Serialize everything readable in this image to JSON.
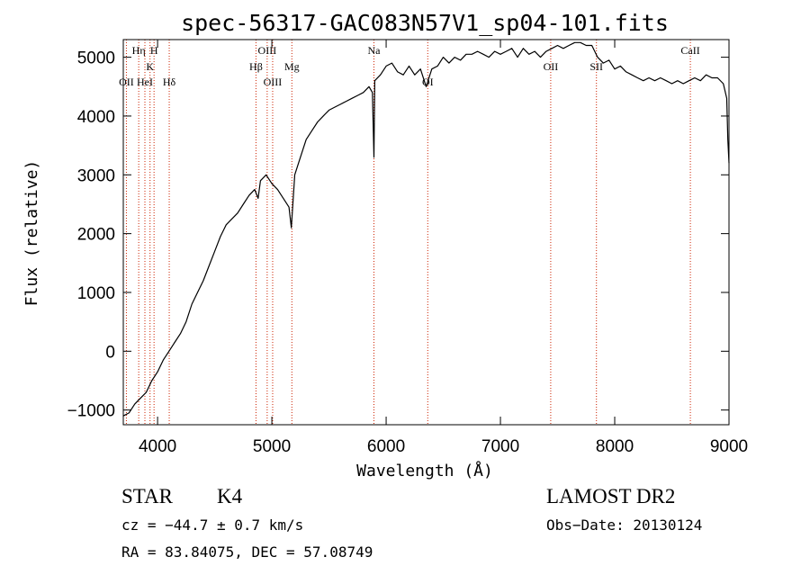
{
  "chart_data": {
    "type": "line",
    "title": "spec-56317-GAC083N57V1_sp04-101.fits",
    "xlabel": "Wavelength (Å)",
    "ylabel": "Flux (relative)",
    "xlim": [
      3700,
      9000
    ],
    "ylim": [
      -1250,
      5300
    ],
    "xticks": [
      4000,
      5000,
      6000,
      7000,
      8000,
      9000
    ],
    "xtick_labels": [
      "4000",
      "5000",
      "6000",
      "7000",
      "8000",
      "9000"
    ],
    "yticks": [
      -1000,
      0,
      1000,
      2000,
      3000,
      4000,
      5000
    ],
    "ytick_labels": [
      "−1000",
      "0",
      "1000",
      "2000",
      "3000",
      "4000",
      "5000"
    ],
    "grid": false,
    "line_color": "#000000",
    "marker_color": "#cc2200",
    "series": [
      {
        "x": [
          3700,
          3750,
          3800,
          3850,
          3900,
          3950,
          4000,
          4050,
          4100,
          4150,
          4200,
          4250,
          4300,
          4350,
          4400,
          4450,
          4500,
          4550,
          4600,
          4650,
          4700,
          4750,
          4800,
          4850,
          4880,
          4900,
          4950,
          5000,
          5050,
          5100,
          5150,
          5170,
          5200,
          5250,
          5300,
          5350,
          5400,
          5450,
          5500,
          5550,
          5600,
          5650,
          5700,
          5750,
          5800,
          5850,
          5880,
          5893,
          5900,
          5950,
          6000,
          6050,
          6100,
          6150,
          6200,
          6250,
          6300,
          6350,
          6400,
          6450,
          6500,
          6550,
          6600,
          6650,
          6700,
          6750,
          6800,
          6850,
          6900,
          6950,
          7000,
          7050,
          7100,
          7150,
          7200,
          7250,
          7300,
          7350,
          7400,
          7450,
          7500,
          7550,
          7600,
          7650,
          7700,
          7750,
          7800,
          7850,
          7900,
          7950,
          8000,
          8050,
          8100,
          8150,
          8200,
          8250,
          8300,
          8350,
          8400,
          8450,
          8500,
          8550,
          8600,
          8650,
          8700,
          8750,
          8800,
          8850,
          8900,
          8950,
          8980,
          8990,
          9000
        ],
        "y": [
          -1100,
          -1050,
          -900,
          -800,
          -700,
          -500,
          -350,
          -150,
          0,
          150,
          300,
          500,
          800,
          1000,
          1200,
          1450,
          1700,
          1950,
          2150,
          2250,
          2350,
          2500,
          2650,
          2750,
          2600,
          2900,
          3000,
          2850,
          2750,
          2600,
          2450,
          2100,
          3000,
          3300,
          3600,
          3750,
          3900,
          4000,
          4100,
          4150,
          4200,
          4250,
          4300,
          4350,
          4400,
          4500,
          4400,
          3300,
          4600,
          4700,
          4850,
          4900,
          4750,
          4700,
          4850,
          4700,
          4800,
          4500,
          4800,
          4850,
          5000,
          4900,
          5000,
          4950,
          5050,
          5050,
          5100,
          5050,
          5000,
          5100,
          5050,
          5100,
          5150,
          5000,
          5150,
          5050,
          5100,
          5000,
          5100,
          5150,
          5200,
          5150,
          5200,
          5250,
          5250,
          5200,
          5200,
          5000,
          4900,
          4950,
          4800,
          4850,
          4750,
          4700,
          4650,
          4600,
          4650,
          4600,
          4650,
          4600,
          4550,
          4600,
          4550,
          4600,
          4650,
          4600,
          4700,
          4650,
          4650,
          4550,
          4300,
          3600,
          3200
        ]
      }
    ],
    "line_markers": [
      {
        "x": 3727,
        "label": "OII"
      },
      {
        "x": 3835,
        "label": "Hη"
      },
      {
        "x": 3889,
        "label": "HeI"
      },
      {
        "x": 3934,
        "label": "K"
      },
      {
        "x": 3969,
        "label": "H"
      },
      {
        "x": 4102,
        "label": "Hδ"
      },
      {
        "x": 4861,
        "label": "Hβ"
      },
      {
        "x": 4959,
        "label": "OIII"
      },
      {
        "x": 5007,
        "label": "OIII"
      },
      {
        "x": 5175,
        "label": "Mg"
      },
      {
        "x": 5893,
        "label": "Na"
      },
      {
        "x": 6364,
        "label": "OI"
      },
      {
        "x": 7440,
        "label": "OII"
      },
      {
        "x": 7840,
        "label": "SII"
      },
      {
        "x": 8662,
        "label": "CaII"
      }
    ]
  },
  "info": {
    "object_class": "STAR",
    "subclass": "K4",
    "survey": "LAMOST DR2",
    "cz": "cz = −44.7 ± 0.7 km/s",
    "obs_date": "Obs−Date: 20130124",
    "coords": "RA =  83.84075, DEC =  57.08749"
  }
}
